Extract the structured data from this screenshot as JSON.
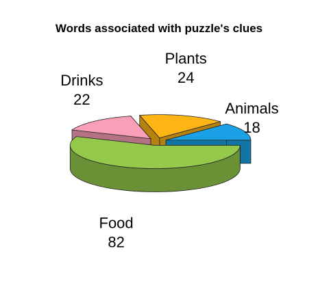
{
  "chart_data": {
    "type": "pie",
    "title": "Words associated with puzzle's clues",
    "categories": [
      "Animals",
      "Plants",
      "Drinks",
      "Food"
    ],
    "values": [
      18,
      24,
      22,
      82
    ],
    "colors": [
      "#1ba1e6",
      "#fdb515",
      "#f9a0b8",
      "#94c94c"
    ],
    "exploded": true,
    "three_d": true,
    "legend": "none"
  }
}
